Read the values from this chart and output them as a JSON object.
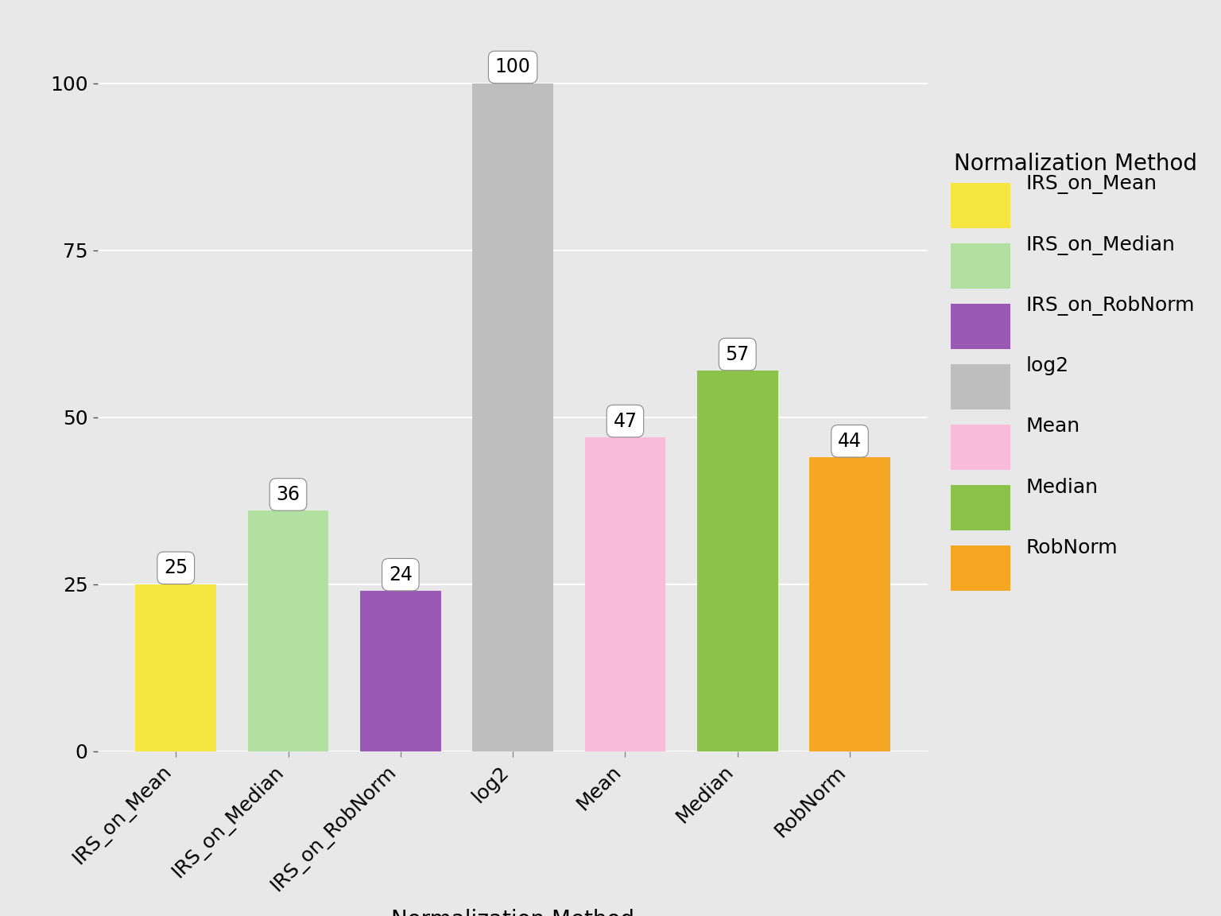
{
  "categories": [
    "IRS_on_Mean",
    "IRS_on_Median",
    "IRS_on_RobNorm",
    "log2",
    "Mean",
    "Median",
    "RobNorm"
  ],
  "values": [
    25,
    36,
    24,
    100,
    47,
    57,
    44
  ],
  "bar_colors": [
    "#F5E642",
    "#B2E0A0",
    "#9B59B6",
    "#BEBEBE",
    "#F8BBD9",
    "#8BC34A",
    "#F5A623"
  ],
  "xlabel": "Normalization Method",
  "ylim": [
    0,
    107
  ],
  "yticks": [
    0,
    25,
    50,
    75,
    100
  ],
  "ytick_labels": [
    "0",
    "25",
    "50",
    "75",
    "100"
  ],
  "legend_title": "Normalization Method",
  "legend_labels": [
    "IRS_on_Mean",
    "IRS_on_Median",
    "IRS_on_RobNorm",
    "log2",
    "Mean",
    "Median",
    "RobNorm"
  ],
  "legend_colors": [
    "#F5E642",
    "#B2E0A0",
    "#9B59B6",
    "#BEBEBE",
    "#F8BBD9",
    "#8BC34A",
    "#F5A623"
  ],
  "fig_background": "#E8E8E8",
  "plot_background": "#E8E8E8",
  "white_background": "#FFFFFF",
  "grid_color": "#FFFFFF",
  "label_fontsize": 20,
  "tick_fontsize": 18,
  "legend_fontsize": 18,
  "legend_title_fontsize": 20,
  "annotation_fontsize": 17
}
